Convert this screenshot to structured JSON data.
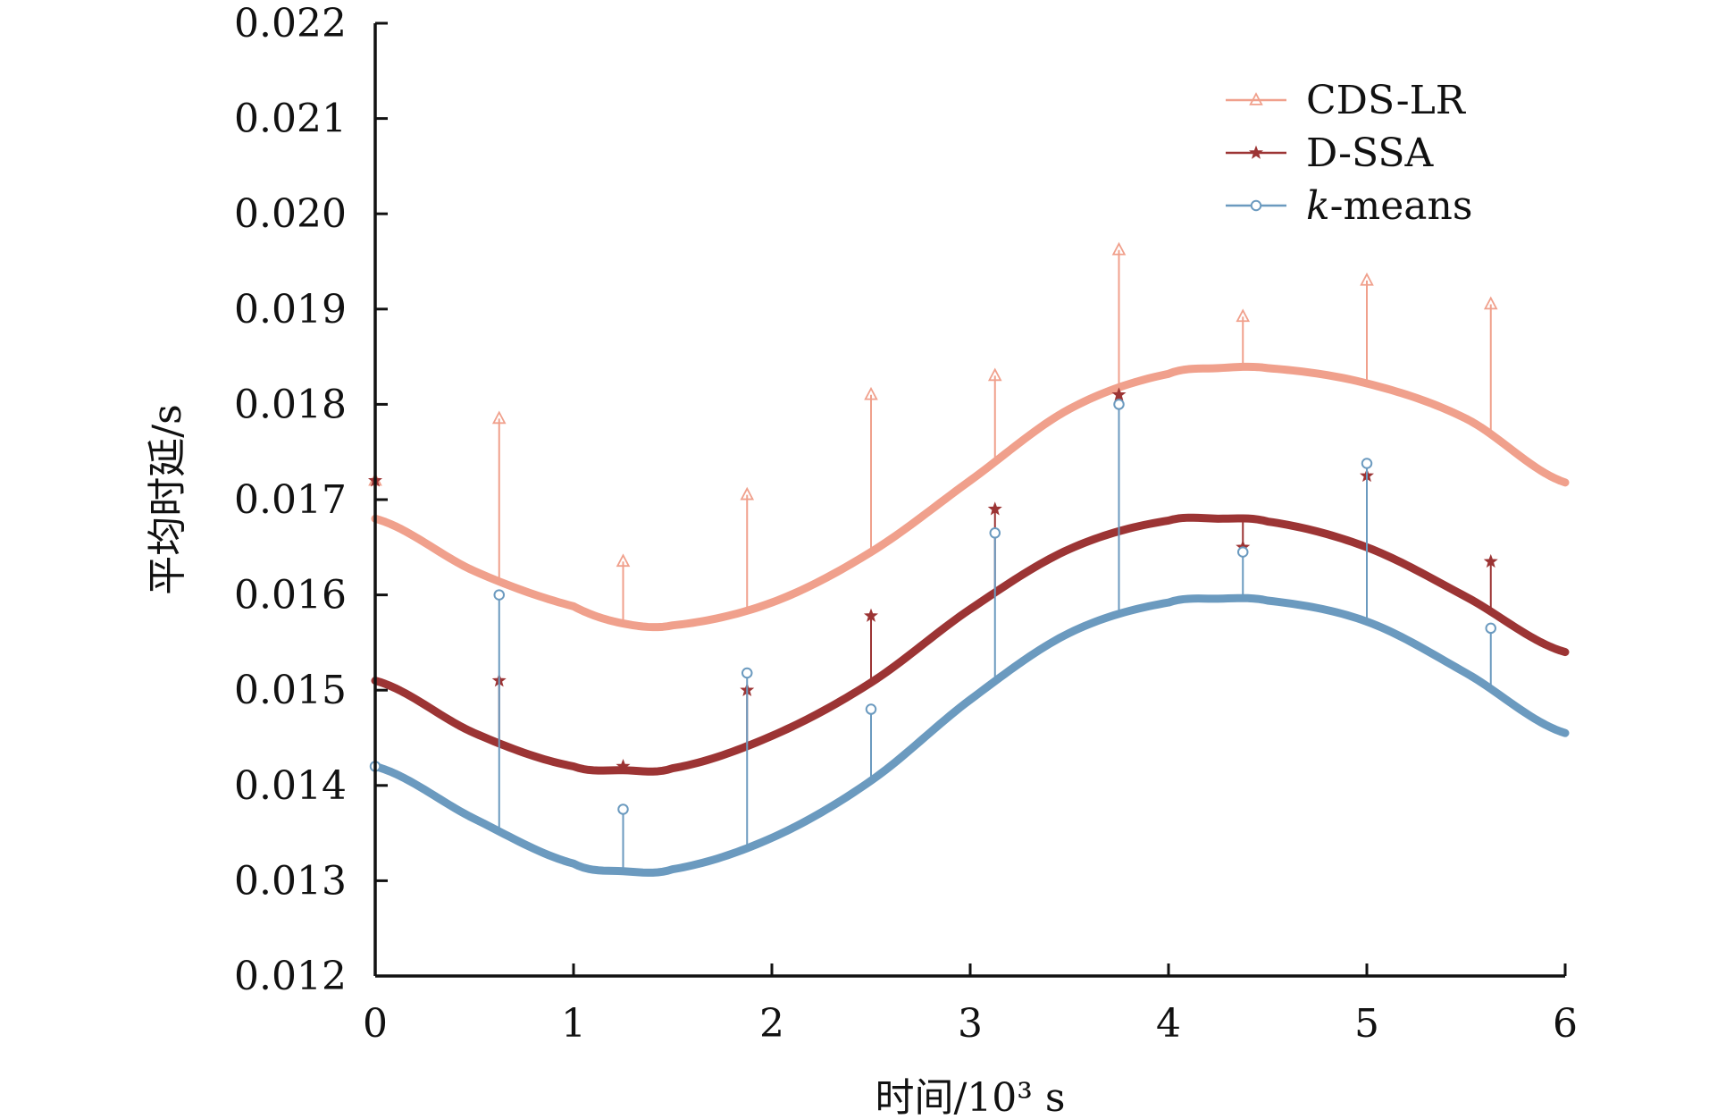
{
  "chart_data": {
    "type": "line",
    "title": "",
    "xlabel": "时间/10³ s",
    "ylabel": "平均时延/s",
    "xlim": [
      0,
      6
    ],
    "ylim": [
      0.012,
      0.022
    ],
    "x_ticks": [
      "0",
      "1",
      "2",
      "3",
      "4",
      "5",
      "6"
    ],
    "y_ticks": [
      "0.012",
      "0.013",
      "0.014",
      "0.015",
      "0.016",
      "0.017",
      "0.018",
      "0.019",
      "0.020",
      "0.021",
      "0.022"
    ],
    "grid": false,
    "legend_position": "top-right",
    "series": [
      {
        "name": "CDS-LR",
        "color": "#f0a08c",
        "marker": "triangle",
        "x": [
          0,
          0.5,
          1.0,
          1.25,
          1.5,
          2.0,
          2.5,
          3.0,
          3.5,
          4.0,
          4.25,
          4.5,
          5.0,
          5.5,
          6.0
        ],
        "y": [
          0.0168,
          0.01625,
          0.01588,
          0.0157,
          0.01568,
          0.01592,
          0.01645,
          0.0172,
          0.01795,
          0.01832,
          0.01838,
          0.01838,
          0.01822,
          0.01785,
          0.01718
        ],
        "sample_x": [
          0,
          0.625,
          1.25,
          1.875,
          2.5,
          3.125,
          3.75,
          4.375,
          5.0,
          5.625
        ],
        "sample_y": [
          0.0172,
          0.01785,
          0.01635,
          0.01705,
          0.0181,
          0.0183,
          0.01962,
          0.01892,
          0.0193,
          0.01905
        ]
      },
      {
        "name": "D-SSA",
        "color": "#9c3434",
        "marker": "star",
        "x": [
          0,
          0.5,
          1.0,
          1.25,
          1.5,
          2.0,
          2.5,
          3.0,
          3.5,
          4.0,
          4.25,
          4.5,
          5.0,
          5.5,
          6.0
        ],
        "y": [
          0.0151,
          0.01455,
          0.0142,
          0.01416,
          0.01418,
          0.01452,
          0.01508,
          0.01585,
          0.01648,
          0.01678,
          0.0168,
          0.01677,
          0.0165,
          0.01598,
          0.0154
        ],
        "sample_x": [
          0,
          0.625,
          1.25,
          1.875,
          2.5,
          3.125,
          3.75,
          4.375,
          5.0,
          5.625
        ],
        "sample_y": [
          0.0172,
          0.0151,
          0.0142,
          0.015,
          0.01578,
          0.0169,
          0.0181,
          0.0165,
          0.01725,
          0.01635
        ]
      },
      {
        "name": "k-means",
        "color": "#6b9abf",
        "marker": "circle",
        "x": [
          0,
          0.5,
          1.0,
          1.25,
          1.5,
          2.0,
          2.5,
          3.0,
          3.5,
          4.0,
          4.25,
          4.5,
          5.0,
          5.5,
          6.0
        ],
        "y": [
          0.0142,
          0.01365,
          0.01318,
          0.0131,
          0.01312,
          0.01345,
          0.01405,
          0.0149,
          0.0156,
          0.01592,
          0.01596,
          0.01594,
          0.01572,
          0.01518,
          0.01455
        ],
        "sample_x": [
          0,
          0.625,
          1.25,
          1.875,
          2.5,
          3.125,
          3.75,
          4.375,
          5.0,
          5.625
        ],
        "sample_y": [
          0.0142,
          0.016,
          0.01375,
          0.01518,
          0.0148,
          0.01665,
          0.018,
          0.01645,
          0.01738,
          0.01565
        ]
      }
    ]
  }
}
